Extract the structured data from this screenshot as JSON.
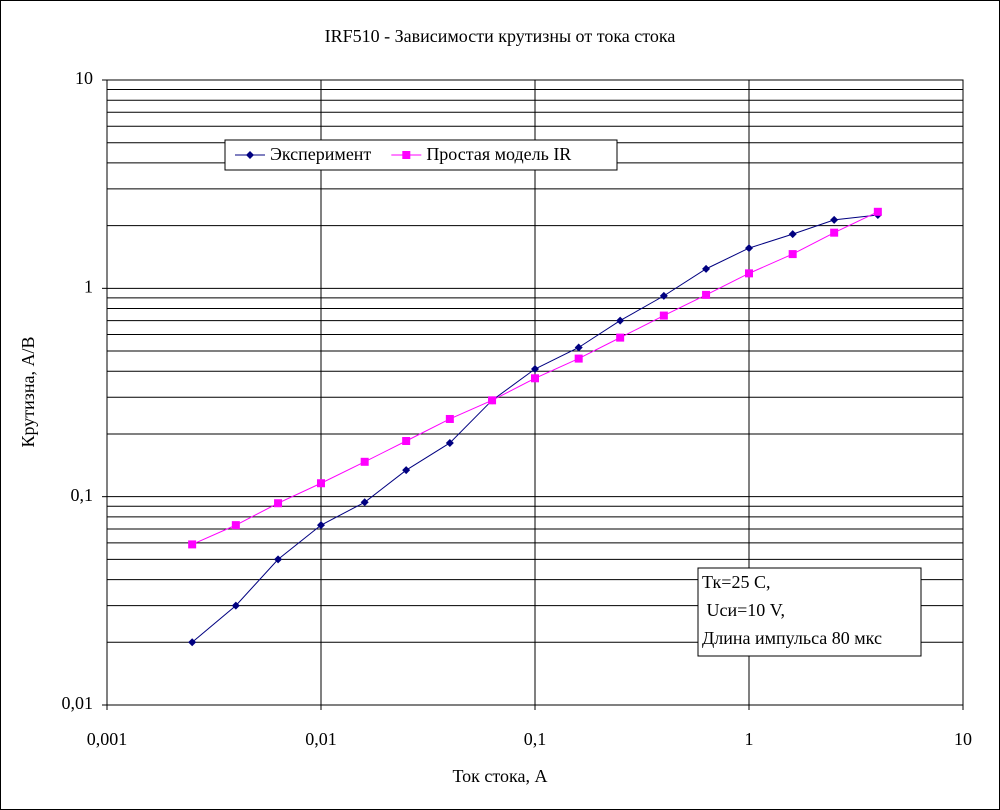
{
  "chart_data": {
    "type": "line",
    "title": "IRF510 - Зависимости крутизны от тока стока",
    "x_label": "Ток стока, А",
    "y_label": "Крутизна, А/В",
    "x": [
      0.0025,
      0.004,
      0.0063,
      0.01,
      0.016,
      0.025,
      0.04,
      0.063,
      0.1,
      0.16,
      0.25,
      0.4,
      0.63,
      1,
      1.6,
      2.5,
      4
    ],
    "series": [
      {
        "name": "Эксперимент",
        "color": "#000080",
        "marker": "diamond",
        "values": [
          0.02,
          0.03,
          0.05,
          0.073,
          0.094,
          0.134,
          0.181,
          0.29,
          0.41,
          0.52,
          0.7,
          0.92,
          1.24,
          1.56,
          1.82,
          2.13,
          2.25
        ]
      },
      {
        "name": "Простая модель IR",
        "color": "#ff00ff",
        "marker": "square",
        "values": [
          0.059,
          0.073,
          0.093,
          0.116,
          0.147,
          0.185,
          0.236,
          0.29,
          0.37,
          0.46,
          0.58,
          0.74,
          0.93,
          1.18,
          1.46,
          1.85,
          2.33
        ]
      }
    ],
    "x_log": true,
    "y_log": true,
    "xlim": [
      0.001,
      10
    ],
    "xticks": [
      {
        "value": 0.001,
        "label": "0,001"
      },
      {
        "value": 0.01,
        "label": "0,01"
      },
      {
        "value": 0.1,
        "label": "0,1"
      },
      1,
      10
    ],
    "ylim": [
      0.01,
      10
    ],
    "yticks": [
      {
        "value": 0.01,
        "label": "0,01"
      },
      {
        "value": 0.1,
        "label": "0,1"
      },
      1,
      10
    ],
    "grid": true,
    "legend": "top-left",
    "annotation": [
      "Тк=25 С,",
      " Uси=10 V,",
      "Длина импульса 80 мкс"
    ]
  }
}
